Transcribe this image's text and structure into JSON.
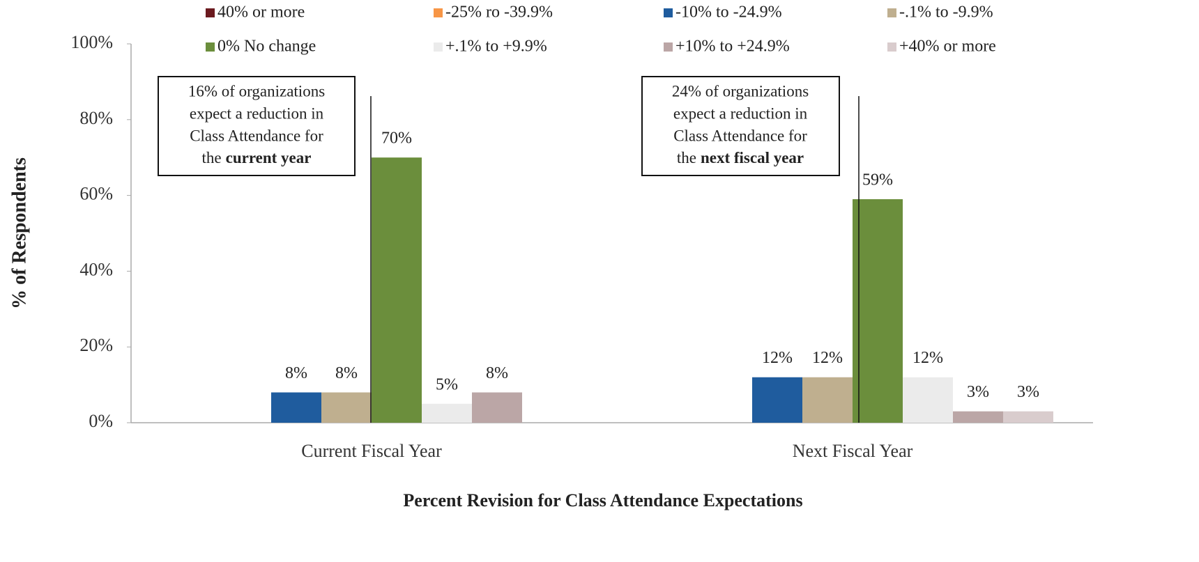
{
  "chart_data": {
    "type": "bar",
    "categories": [
      "Current Fiscal Year",
      "Next Fiscal Year"
    ],
    "series": [
      {
        "name": "40% or more",
        "color": "#6b1a1f",
        "values": [
          null,
          null
        ],
        "value_labels": [
          null,
          null
        ]
      },
      {
        "name": "-25% ro -39.9%",
        "color": "#f79646",
        "values": [
          null,
          null
        ],
        "value_labels": [
          null,
          null
        ]
      },
      {
        "name": "-10% to -24.9%",
        "color": "#1f5c9e",
        "values": [
          8,
          12
        ],
        "value_labels": [
          "8%",
          "12%"
        ]
      },
      {
        "name": "-.1% to -9.9%",
        "color": "#bfaf8f",
        "values": [
          8,
          12
        ],
        "value_labels": [
          "8%",
          "12%"
        ]
      },
      {
        "name": "0% No change",
        "color": "#6b8e3c",
        "values": [
          70,
          59
        ],
        "value_labels": [
          "70%",
          "59%"
        ]
      },
      {
        "name": "+.1% to +9.9%",
        "color": "#ebebeb",
        "values": [
          5,
          12
        ],
        "value_labels": [
          "5%",
          "12%"
        ]
      },
      {
        "name": "+10% to +24.9%",
        "color": "#bba6a6",
        "values": [
          8,
          3
        ],
        "value_labels": [
          "8%",
          "3%"
        ]
      },
      {
        "name": "+40% or more",
        "color": "#d9cccd",
        "values": [
          null,
          3
        ],
        "value_labels": [
          null,
          "3%"
        ]
      }
    ],
    "ylim": [
      0,
      100
    ],
    "yticks": [
      {
        "value": 0,
        "label": "0%"
      },
      {
        "value": 20,
        "label": "20%"
      },
      {
        "value": 40,
        "label": "40%"
      },
      {
        "value": 60,
        "label": "60%"
      },
      {
        "value": 80,
        "label": "80%"
      },
      {
        "value": 100,
        "label": "100%"
      }
    ],
    "y_label": "% of  Respondents",
    "x_label": "Percent Revision for Class Attendance Expectations",
    "annotations": [
      {
        "lines": [
          "16% of organizations",
          "expect a reduction in",
          "Class Attendance for"
        ],
        "last_plain": "the",
        "last_bold": "current year"
      },
      {
        "lines": [
          "24% of organizations",
          "expect a reduction in",
          "Class Attendance for"
        ],
        "last_plain": "the",
        "last_bold": "next fiscal year"
      }
    ]
  }
}
